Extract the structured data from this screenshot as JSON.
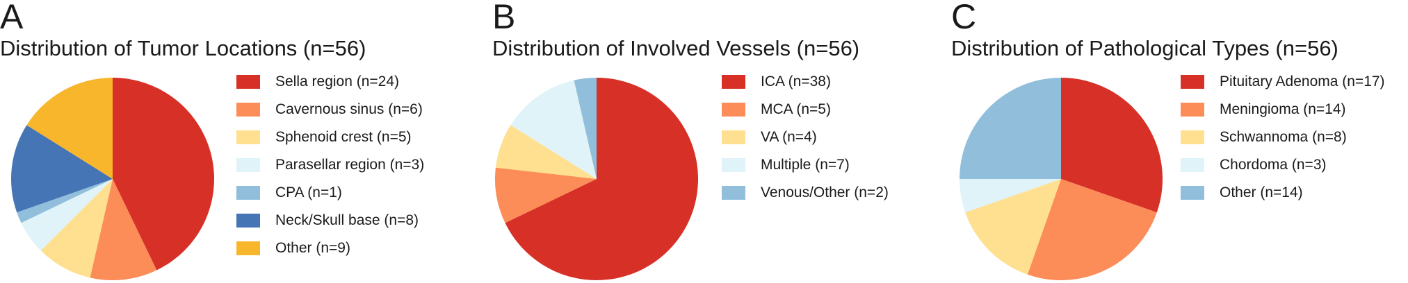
{
  "chart_data": [
    {
      "type": "pie",
      "panel_label": "A",
      "title": "Distribution of Tumor Locations (n=56)",
      "total": 56,
      "start_angle_deg": 90,
      "direction": "clockwise",
      "slices": [
        {
          "label": "Sella region (n=24)",
          "value": 24,
          "color": "#d73027"
        },
        {
          "label": "Cavernous sinus (n=6)",
          "value": 6,
          "color": "#fc8d59"
        },
        {
          "label": "Sphenoid crest  (n=5)",
          "value": 5,
          "color": "#fee090"
        },
        {
          "label": "Parasellar region  (n=3)",
          "value": 3,
          "color": "#e0f3f8"
        },
        {
          "label": "CPA  (n=1)",
          "value": 1,
          "color": "#91bfdb"
        },
        {
          "label": "Neck/Skull base  (n=8)",
          "value": 8,
          "color": "#4575b4"
        },
        {
          "label": "Other  (n=9)",
          "value": 9,
          "color": "#f8b62d"
        }
      ],
      "legend_position": "right"
    },
    {
      "type": "pie",
      "panel_label": "B",
      "title": "Distribution of Involved Vessels (n=56)",
      "total": 56,
      "start_angle_deg": 90,
      "direction": "clockwise",
      "slices": [
        {
          "label": "ICA (n=38)",
          "value": 38,
          "color": "#d73027"
        },
        {
          "label": "MCA (n=5)",
          "value": 5,
          "color": "#fc8d59"
        },
        {
          "label": "VA (n=4)",
          "value": 4,
          "color": "#fee090"
        },
        {
          "label": "Multiple (n=7)",
          "value": 7,
          "color": "#e0f3f8"
        },
        {
          "label": "Venous/Other (n=2)",
          "value": 2,
          "color": "#91bfdb"
        }
      ],
      "legend_position": "right"
    },
    {
      "type": "pie",
      "panel_label": "C",
      "title": "Distribution of Pathological Types (n=56)",
      "total": 56,
      "start_angle_deg": 90,
      "direction": "clockwise",
      "slices": [
        {
          "label": "Pituitary Adenoma (n=17)",
          "value": 17,
          "color": "#d73027"
        },
        {
          "label": "Meningioma (n=14)",
          "value": 14,
          "color": "#fc8d59"
        },
        {
          "label": "Schwannoma (n=8)",
          "value": 8,
          "color": "#fee090"
        },
        {
          "label": "Chordoma (n=3)",
          "value": 3,
          "color": "#e0f3f8"
        },
        {
          "label": "Other (n=14)",
          "value": 14,
          "color": "#91bfdb"
        }
      ],
      "legend_position": "right"
    }
  ]
}
